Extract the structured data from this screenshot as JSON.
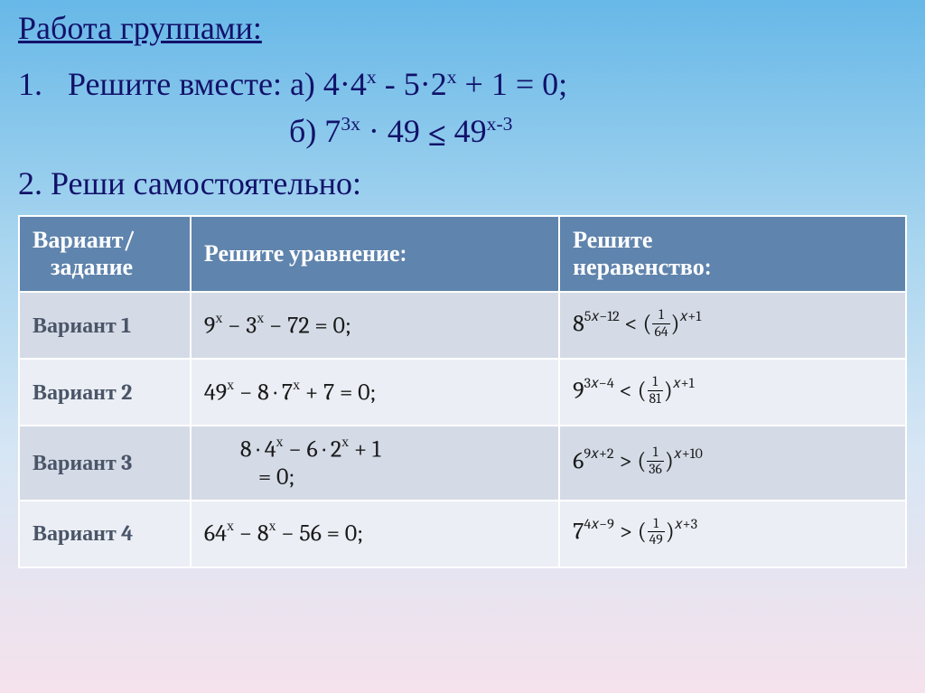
{
  "title": "Работа группами:",
  "task1": {
    "num": "1.",
    "label": "Решите вместе:",
    "a_prefix": "а) 4",
    "a_dot1": "·",
    "a_4x": "4",
    "a_4x_sup": "х",
    "a_mid1": " - 5",
    "a_dot2": "·",
    "a_2x": "2",
    "a_2x_sup": "х",
    "a_tail": " + 1 = 0;",
    "b_prefix": "б) 7",
    "b_7_sup": "3х",
    "b_mid": " · 49 ",
    "b_le_top": "<",
    "b_le_bot": "__",
    "b_49": " 49",
    "b_49_sup": "х-3"
  },
  "task2": "2. Реши самостоятельно:",
  "table": {
    "headers": {
      "c0a": "Вариант/",
      "c0b": "задание",
      "c1": "Решите уравнение:",
      "c2a": "Решите",
      "c2b": "неравенство:"
    },
    "rows": [
      {
        "name": "Вариант 1",
        "eq": {
          "text": "9<span class='msup'>х</span> − 3<span class='msup'>х</span> − 72 = 0;"
        },
        "ineq": {
          "base1": "8",
          "sup1": "5𝑥−12",
          "rel": "<",
          "frac_n": "1",
          "frac_d": "64",
          "sup2": "𝑥+1"
        }
      },
      {
        "name": "Вариант 2",
        "eq": {
          "text": "49<span class='msup'>х</span> − 8 · 7<span class='msup'>х</span> + 7 = 0;"
        },
        "ineq": {
          "base1": "9",
          "sup1": "3𝑥−4",
          "rel": "<",
          "frac_n": "1",
          "frac_d": "81",
          "sup2": "𝑥+1"
        }
      },
      {
        "name": "Вариант 3",
        "eq": {
          "text": "<span class='eq-indent'>8 · 4<span class='msup'>х</span> − 6 · 2<span class='msup'>х</span> + 1</span><span class='eq-line2'>= 0;</span>"
        },
        "ineq": {
          "base1": "6",
          "sup1": "9𝑥+2",
          "rel": ">",
          "frac_n": "1",
          "frac_d": "36",
          "sup2": "𝑥+10"
        }
      },
      {
        "name": "Вариант 4",
        "eq": {
          "text": "64<span class='msup'>х</span> − 8<span class='msup'>х</span> − 56 = 0;"
        },
        "ineq": {
          "base1": "7",
          "sup1": "4𝑥−9",
          "rel": ">",
          "frac_n": "1",
          "frac_d": "49",
          "sup2": "𝑥+3"
        }
      }
    ]
  }
}
